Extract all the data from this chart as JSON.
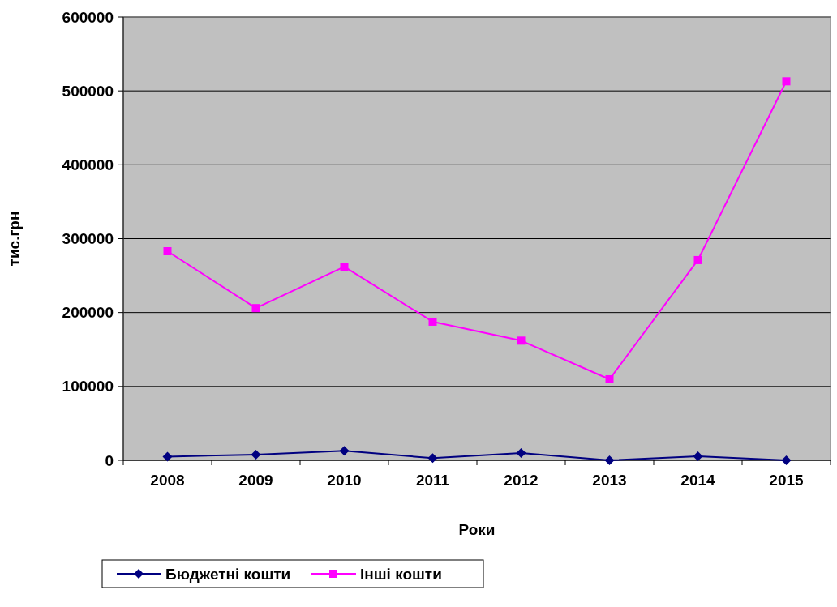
{
  "chart_data": {
    "type": "line",
    "xlabel": "Роки",
    "ylabel": "тис.грн",
    "categories": [
      "2008",
      "2009",
      "2010",
      "2011",
      "2012",
      "2013",
      "2014",
      "2015"
    ],
    "series": [
      {
        "name": "Бюджетні кошти",
        "color": "#000080",
        "marker": "diamond",
        "values": [
          5000,
          7700,
          13000,
          3000,
          10000,
          0,
          5500,
          0
        ]
      },
      {
        "name": "Інші кошти",
        "color": "#ff00ff",
        "marker": "square",
        "values": [
          283000,
          206000,
          262000,
          187600,
          162000,
          109700,
          271000,
          513000
        ]
      }
    ],
    "ylim": [
      0,
      600000
    ],
    "yticks": [
      0,
      100000,
      200000,
      300000,
      400000,
      500000,
      600000
    ],
    "grid": "y",
    "legend": "bottom"
  }
}
